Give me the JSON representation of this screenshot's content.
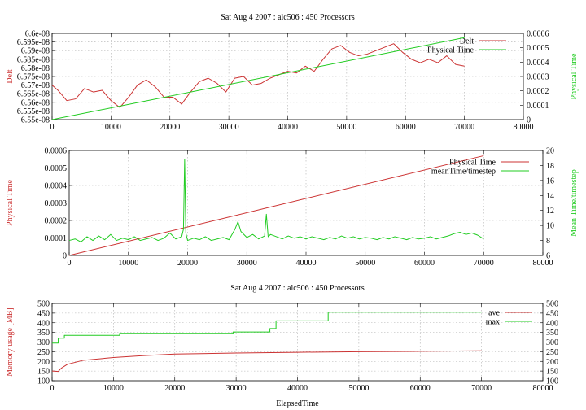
{
  "figure_title": "Sat Aug 4 2007 : alc506 : 450 Processors",
  "chart_data": [
    {
      "type": "line",
      "title": "Sat Aug 4 2007 : alc506 : 450 Processors",
      "xlabel": "",
      "ylabel": "Delt",
      "y2label": "Physical Time",
      "xlim": [
        0,
        80000
      ],
      "ylim": [
        6.55e-08,
        6.6e-08
      ],
      "y2lim": [
        0,
        0.0006
      ],
      "x_ticks": [
        "0",
        "10000",
        "20000",
        "30000",
        "40000",
        "50000",
        "60000",
        "70000",
        "80000"
      ],
      "y_ticks": [
        "6.55e-08",
        "6.555e-08",
        "6.56e-08",
        "6.565e-08",
        "6.57e-08",
        "6.575e-08",
        "6.58e-08",
        "6.585e-08",
        "6.59e-08",
        "6.595e-08",
        "6.6e-08"
      ],
      "y2_ticks": [
        "0",
        "0.0001",
        "0.0002",
        "0.0003",
        "0.0004",
        "0.0005",
        "0.0006"
      ],
      "grid": true,
      "legend_position": "top-right",
      "series": [
        {
          "name": "Delt",
          "axis": "y",
          "color": "#cc3333",
          "x": [
            0,
            1000,
            2500,
            4000,
            5500,
            7000,
            8500,
            10000,
            11500,
            13000,
            14500,
            16000,
            17500,
            19000,
            20500,
            22000,
            23500,
            25000,
            26500,
            28000,
            29500,
            31000,
            32500,
            34000,
            35500,
            37000,
            38500,
            40000,
            41500,
            43000,
            44500,
            46000,
            47500,
            49000,
            50500,
            52000,
            53500,
            55000,
            56500,
            58000,
            59500,
            61000,
            62500,
            64000,
            65500,
            67000,
            68500,
            70000
          ],
          "values": [
            6.57e-08,
            6.567e-08,
            6.561e-08,
            6.562e-08,
            6.568e-08,
            6.566e-08,
            6.567e-08,
            6.561e-08,
            6.557e-08,
            6.563e-08,
            6.57e-08,
            6.573e-08,
            6.569e-08,
            6.563e-08,
            6.563e-08,
            6.559e-08,
            6.566e-08,
            6.572e-08,
            6.574e-08,
            6.571e-08,
            6.566e-08,
            6.574e-08,
            6.575e-08,
            6.57e-08,
            6.571e-08,
            6.574e-08,
            6.576e-08,
            6.578e-08,
            6.577e-08,
            6.581e-08,
            6.578e-08,
            6.585e-08,
            6.591e-08,
            6.593e-08,
            6.589e-08,
            6.587e-08,
            6.588e-08,
            6.59e-08,
            6.592e-08,
            6.594e-08,
            6.589e-08,
            6.585e-08,
            6.583e-08,
            6.585e-08,
            6.583e-08,
            6.587e-08,
            6.582e-08,
            6.581e-08
          ]
        },
        {
          "name": "Physical Time",
          "axis": "y2",
          "color": "#22cc22",
          "x": [
            0,
            70000
          ],
          "values": [
            0,
            0.00057
          ]
        }
      ]
    },
    {
      "type": "line",
      "title": "",
      "xlabel": "",
      "ylabel": "Physical Time",
      "y2label": "Mean Time/timestep",
      "xlim": [
        0,
        80000
      ],
      "ylim": [
        0,
        0.0006
      ],
      "y2lim": [
        6,
        20
      ],
      "x_ticks": [
        "0",
        "10000",
        "20000",
        "30000",
        "40000",
        "50000",
        "60000",
        "70000",
        "80000"
      ],
      "y_ticks": [
        "0",
        "0.0001",
        "0.0002",
        "0.0003",
        "0.0004",
        "0.0005",
        "0.0006"
      ],
      "y2_ticks": [
        "6",
        "8",
        "10",
        "12",
        "14",
        "16",
        "18",
        "20"
      ],
      "grid": true,
      "legend_position": "top-right",
      "series": [
        {
          "name": "Physical Time",
          "axis": "y",
          "color": "#cc3333",
          "x": [
            0,
            70000
          ],
          "values": [
            0,
            0.00057
          ]
        },
        {
          "name": "meanTime/timestep",
          "axis": "y2",
          "color": "#22cc22",
          "x": [
            0,
            1000,
            2000,
            3000,
            4000,
            5000,
            6000,
            7000,
            8000,
            9000,
            10000,
            11000,
            12000,
            13000,
            14000,
            15000,
            16000,
            17000,
            18000,
            19000,
            19300,
            19500,
            19700,
            20000,
            21000,
            22000,
            23000,
            24000,
            25000,
            26000,
            27000,
            28000,
            28500,
            29000,
            30000,
            31000,
            32000,
            33000,
            33300,
            33600,
            34000,
            35000,
            36000,
            37000,
            38000,
            39000,
            40000,
            41000,
            42000,
            43000,
            44000,
            45000,
            46000,
            47000,
            48000,
            49000,
            50000,
            51000,
            52000,
            53000,
            54000,
            55000,
            56000,
            57000,
            58000,
            59000,
            60000,
            61000,
            62000,
            63000,
            64000,
            65000,
            66000,
            67000,
            68000,
            69000,
            70000
          ],
          "values": [
            8.0,
            8.2,
            7.8,
            8.5,
            8.0,
            8.6,
            8.1,
            8.8,
            8.0,
            8.3,
            8.1,
            8.5,
            8.0,
            8.2,
            8.4,
            8.0,
            8.3,
            9.0,
            8.2,
            8.5,
            9.5,
            18.8,
            9.0,
            8.0,
            8.3,
            8.1,
            8.5,
            8.0,
            8.2,
            8.4,
            8.1,
            9.5,
            10.5,
            9.2,
            8.4,
            8.8,
            8.2,
            8.6,
            11.5,
            8.5,
            8.8,
            8.5,
            8.2,
            8.6,
            8.3,
            8.5,
            8.2,
            8.5,
            8.3,
            8.1,
            8.4,
            8.2,
            8.6,
            8.3,
            8.5,
            8.2,
            8.4,
            8.3,
            8.1,
            8.4,
            8.2,
            8.5,
            8.3,
            8.1,
            8.4,
            8.2,
            8.3,
            8.5,
            8.2,
            8.4,
            8.6,
            8.9,
            9.1,
            8.8,
            9.0,
            8.7,
            8.2
          ]
        }
      ]
    },
    {
      "type": "line",
      "title": "Sat Aug 4 2007 : alc506 : 450 Processors",
      "xlabel": "ElapsedTime",
      "ylabel": "Memory usage [MB]",
      "y2label": "",
      "xlim": [
        0,
        80000
      ],
      "ylim": [
        100,
        500
      ],
      "y2lim": [
        100,
        500
      ],
      "x_ticks": [
        "0",
        "10000",
        "20000",
        "30000",
        "40000",
        "50000",
        "60000",
        "70000",
        "80000"
      ],
      "y_ticks": [
        "100",
        "150",
        "200",
        "250",
        "300",
        "350",
        "400",
        "450",
        "500"
      ],
      "y2_ticks": [
        "100",
        "150",
        "200",
        "250",
        "300",
        "350",
        "400",
        "450",
        "500"
      ],
      "grid": true,
      "legend_position": "top-right",
      "series": [
        {
          "name": "ave",
          "axis": "y",
          "color": "#cc3333",
          "x": [
            0,
            1000,
            1500,
            2500,
            5000,
            10000,
            15000,
            20000,
            30000,
            40000,
            50000,
            60000,
            70000
          ],
          "values": [
            150,
            148,
            165,
            185,
            205,
            220,
            230,
            238,
            243,
            247,
            250,
            252,
            255
          ]
        },
        {
          "name": "max",
          "axis": "y",
          "color": "#22cc22",
          "x": [
            0,
            1000,
            1000,
            2000,
            2000,
            11000,
            11000,
            29500,
            29500,
            35500,
            35500,
            36500,
            36500,
            45000,
            45000,
            70000
          ],
          "values": [
            295,
            295,
            320,
            320,
            335,
            335,
            345,
            345,
            352,
            352,
            370,
            370,
            410,
            410,
            455,
            455
          ]
        }
      ]
    }
  ]
}
